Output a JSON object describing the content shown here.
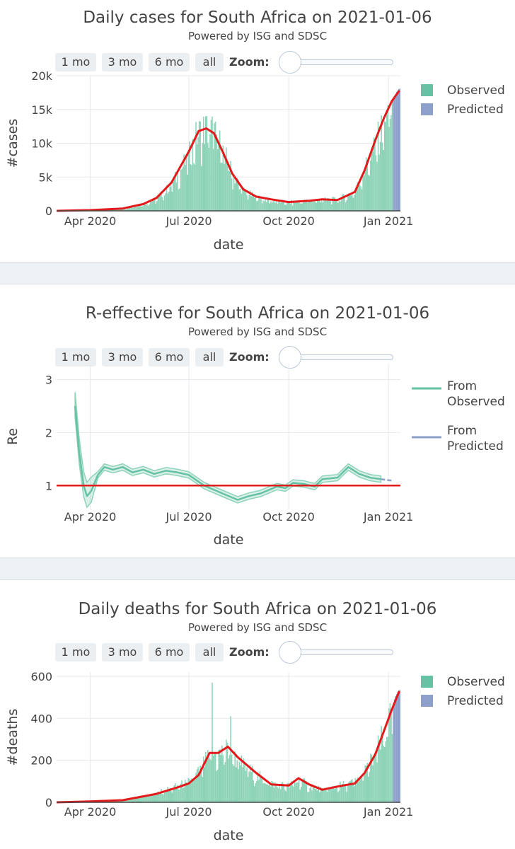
{
  "rangeselector": {
    "b1": "1 mo",
    "b2": "3 mo",
    "b3": "6 mo",
    "b4": "all",
    "zoom_label": "Zoom:"
  },
  "charts": [
    {
      "title": "Daily cases for South Africa on 2021-01-06",
      "subtitle": "Powered by ISG and SDSC",
      "ylabel": "#cases",
      "xlabel": "date",
      "legend": [
        "Observed",
        "Predicted"
      ]
    },
    {
      "title": "R-effective for South Africa on 2021-01-06",
      "subtitle": "Powered by ISG and SDSC",
      "ylabel": "Re",
      "xlabel": "date",
      "legend": [
        "From Observed",
        "From Predicted"
      ]
    },
    {
      "title": "Daily deaths for South Africa on 2021-01-06",
      "subtitle": "Powered by ISG and SDSC",
      "ylabel": "#deaths",
      "xlabel": "date",
      "legend": [
        "Observed",
        "Predicted"
      ]
    }
  ],
  "colors": {
    "observed": "#66c2a5",
    "observed_bar": "#8dd3b7",
    "predicted": "#8da0cb",
    "trend": "#e31a1c",
    "grid": "#e6e9ee"
  },
  "chart_data": [
    {
      "type": "bar",
      "title": "Daily cases for South Africa on 2021-01-06",
      "xlabel": "date",
      "ylabel": "#cases",
      "x_range": [
        "2020-03-01",
        "2021-01-12"
      ],
      "ylim": [
        0,
        20000
      ],
      "x_ticks": [
        {
          "date": "2020-04-01",
          "label": "Apr 2020"
        },
        {
          "date": "2020-07-01",
          "label": "Jul 2020"
        },
        {
          "date": "2020-10-01",
          "label": "Oct 2020"
        },
        {
          "date": "2021-01-01",
          "label": "Jan 2021"
        }
      ],
      "y_ticks": [
        {
          "v": 0,
          "label": "0"
        },
        {
          "v": 5000,
          "label": "5k"
        },
        {
          "v": 10000,
          "label": "10k"
        },
        {
          "v": 15000,
          "label": "15k"
        },
        {
          "v": 20000,
          "label": "20k"
        }
      ],
      "observed_anchors": [
        [
          "2020-03-01",
          0
        ],
        [
          "2020-04-01",
          80
        ],
        [
          "2020-05-01",
          300
        ],
        [
          "2020-05-20",
          1000
        ],
        [
          "2020-06-01",
          1800
        ],
        [
          "2020-06-15",
          4000
        ],
        [
          "2020-07-01",
          8500
        ],
        [
          "2020-07-08",
          11500
        ],
        [
          "2020-07-15",
          12500
        ],
        [
          "2020-07-24",
          12000
        ],
        [
          "2020-08-01",
          9000
        ],
        [
          "2020-08-10",
          5500
        ],
        [
          "2020-08-20",
          3000
        ],
        [
          "2020-09-01",
          2000
        ],
        [
          "2020-09-15",
          1500
        ],
        [
          "2020-10-01",
          1300
        ],
        [
          "2020-10-20",
          1500
        ],
        [
          "2020-11-01",
          1700
        ],
        [
          "2020-11-15",
          1700
        ],
        [
          "2020-12-01",
          3000
        ],
        [
          "2020-12-10",
          6500
        ],
        [
          "2020-12-20",
          10000
        ],
        [
          "2020-12-28",
          13500
        ],
        [
          "2021-01-04",
          16000
        ]
      ],
      "predicted_range": [
        "2021-01-05",
        "2021-01-11"
      ],
      "predicted_values": [
        16500,
        17000,
        17300,
        17600,
        17800,
        18000,
        18100
      ],
      "trend": [
        [
          "2020-03-01",
          0
        ],
        [
          "2020-04-01",
          100
        ],
        [
          "2020-05-01",
          350
        ],
        [
          "2020-05-20",
          1000
        ],
        [
          "2020-06-01",
          1900
        ],
        [
          "2020-06-15",
          4200
        ],
        [
          "2020-07-01",
          8800
        ],
        [
          "2020-07-10",
          11800
        ],
        [
          "2020-07-17",
          12200
        ],
        [
          "2020-07-24",
          11500
        ],
        [
          "2020-08-01",
          8800
        ],
        [
          "2020-08-10",
          5500
        ],
        [
          "2020-08-20",
          3200
        ],
        [
          "2020-09-01",
          2100
        ],
        [
          "2020-09-15",
          1700
        ],
        [
          "2020-10-01",
          1300
        ],
        [
          "2020-10-20",
          1500
        ],
        [
          "2020-11-01",
          1700
        ],
        [
          "2020-11-15",
          1600
        ],
        [
          "2020-12-01",
          2800
        ],
        [
          "2020-12-10",
          6000
        ],
        [
          "2020-12-20",
          10500
        ],
        [
          "2020-12-28",
          13800
        ],
        [
          "2021-01-04",
          16200
        ],
        [
          "2021-01-11",
          17800
        ]
      ]
    },
    {
      "type": "line",
      "title": "R-effective for South Africa on 2021-01-06",
      "xlabel": "date",
      "ylabel": "Re",
      "x_range": [
        "2020-03-01",
        "2021-01-12"
      ],
      "ylim": [
        0.55,
        3.3
      ],
      "x_ticks": [
        {
          "date": "2020-04-01",
          "label": "Apr 2020"
        },
        {
          "date": "2020-07-01",
          "label": "Jul 2020"
        },
        {
          "date": "2020-10-01",
          "label": "Oct 2020"
        },
        {
          "date": "2021-01-01",
          "label": "Jan 2021"
        }
      ],
      "y_ticks": [
        {
          "v": 1,
          "label": "1"
        },
        {
          "v": 2,
          "label": "2"
        },
        {
          "v": 3,
          "label": "3"
        }
      ],
      "reference_line": 1,
      "from_observed": [
        [
          "2020-03-18",
          2.5
        ],
        [
          "2020-03-22",
          1.6
        ],
        [
          "2020-03-26",
          1.0
        ],
        [
          "2020-03-29",
          0.8
        ],
        [
          "2020-04-02",
          0.9
        ],
        [
          "2020-04-08",
          1.2
        ],
        [
          "2020-04-14",
          1.35
        ],
        [
          "2020-04-22",
          1.3
        ],
        [
          "2020-05-01",
          1.35
        ],
        [
          "2020-05-10",
          1.25
        ],
        [
          "2020-05-20",
          1.3
        ],
        [
          "2020-05-30",
          1.22
        ],
        [
          "2020-06-10",
          1.28
        ],
        [
          "2020-06-20",
          1.25
        ],
        [
          "2020-07-01",
          1.2
        ],
        [
          "2020-07-15",
          1.0
        ],
        [
          "2020-08-01",
          0.85
        ],
        [
          "2020-08-15",
          0.73
        ],
        [
          "2020-08-25",
          0.8
        ],
        [
          "2020-09-05",
          0.85
        ],
        [
          "2020-09-20",
          0.98
        ],
        [
          "2020-09-28",
          0.95
        ],
        [
          "2020-10-05",
          1.05
        ],
        [
          "2020-10-15",
          1.03
        ],
        [
          "2020-10-25",
          0.98
        ],
        [
          "2020-11-01",
          1.12
        ],
        [
          "2020-11-15",
          1.15
        ],
        [
          "2020-11-25",
          1.35
        ],
        [
          "2020-12-05",
          1.22
        ],
        [
          "2020-12-15",
          1.15
        ],
        [
          "2020-12-25",
          1.12
        ]
      ],
      "from_predicted": [
        [
          "2020-12-25",
          1.12
        ],
        [
          "2021-01-05",
          1.09
        ]
      ]
    },
    {
      "type": "bar",
      "title": "Daily deaths for South Africa on 2021-01-06",
      "xlabel": "date",
      "ylabel": "#deaths",
      "x_range": [
        "2020-03-01",
        "2021-01-12"
      ],
      "ylim": [
        0,
        620
      ],
      "x_ticks": [
        {
          "date": "2020-04-01",
          "label": "Apr 2020"
        },
        {
          "date": "2020-07-01",
          "label": "Jul 2020"
        },
        {
          "date": "2020-10-01",
          "label": "Oct 2020"
        },
        {
          "date": "2021-01-01",
          "label": "Jan 2021"
        }
      ],
      "y_ticks": [
        {
          "v": 0,
          "label": "0"
        },
        {
          "v": 200,
          "label": "200"
        },
        {
          "v": 400,
          "label": "400"
        },
        {
          "v": 600,
          "label": "600"
        }
      ],
      "observed_anchors": [
        [
          "2020-03-01",
          0
        ],
        [
          "2020-04-01",
          5
        ],
        [
          "2020-05-01",
          12
        ],
        [
          "2020-06-01",
          45
        ],
        [
          "2020-06-20",
          80
        ],
        [
          "2020-07-01",
          100
        ],
        [
          "2020-07-10",
          150
        ],
        [
          "2020-07-20",
          230
        ],
        [
          "2020-07-30",
          240
        ],
        [
          "2020-08-05",
          260
        ],
        [
          "2020-08-15",
          200
        ],
        [
          "2020-09-01",
          130
        ],
        [
          "2020-09-15",
          90
        ],
        [
          "2020-10-01",
          80
        ],
        [
          "2020-10-10",
          110
        ],
        [
          "2020-10-20",
          80
        ],
        [
          "2020-11-01",
          60
        ],
        [
          "2020-11-15",
          80
        ],
        [
          "2020-12-01",
          100
        ],
        [
          "2020-12-10",
          150
        ],
        [
          "2020-12-20",
          240
        ],
        [
          "2020-12-30",
          360
        ],
        [
          "2021-01-04",
          450
        ]
      ],
      "outliers": [
        [
          "2020-07-22",
          570
        ],
        [
          "2020-08-08",
          410
        ]
      ],
      "predicted_range": [
        "2021-01-05",
        "2021-01-11"
      ],
      "predicted_values": [
        470,
        490,
        505,
        515,
        525,
        530,
        535
      ],
      "trend": [
        [
          "2020-03-01",
          0
        ],
        [
          "2020-04-01",
          4
        ],
        [
          "2020-05-01",
          10
        ],
        [
          "2020-06-01",
          40
        ],
        [
          "2020-06-20",
          70
        ],
        [
          "2020-07-01",
          90
        ],
        [
          "2020-07-10",
          130
        ],
        [
          "2020-07-20",
          235
        ],
        [
          "2020-07-28",
          235
        ],
        [
          "2020-08-06",
          265
        ],
        [
          "2020-08-15",
          215
        ],
        [
          "2020-09-01",
          140
        ],
        [
          "2020-09-15",
          85
        ],
        [
          "2020-10-01",
          80
        ],
        [
          "2020-10-10",
          115
        ],
        [
          "2020-10-20",
          85
        ],
        [
          "2020-11-01",
          60
        ],
        [
          "2020-11-15",
          75
        ],
        [
          "2020-12-01",
          90
        ],
        [
          "2020-12-10",
          140
        ],
        [
          "2020-12-20",
          230
        ],
        [
          "2020-12-30",
          370
        ],
        [
          "2021-01-04",
          440
        ],
        [
          "2021-01-11",
          530
        ]
      ]
    }
  ]
}
